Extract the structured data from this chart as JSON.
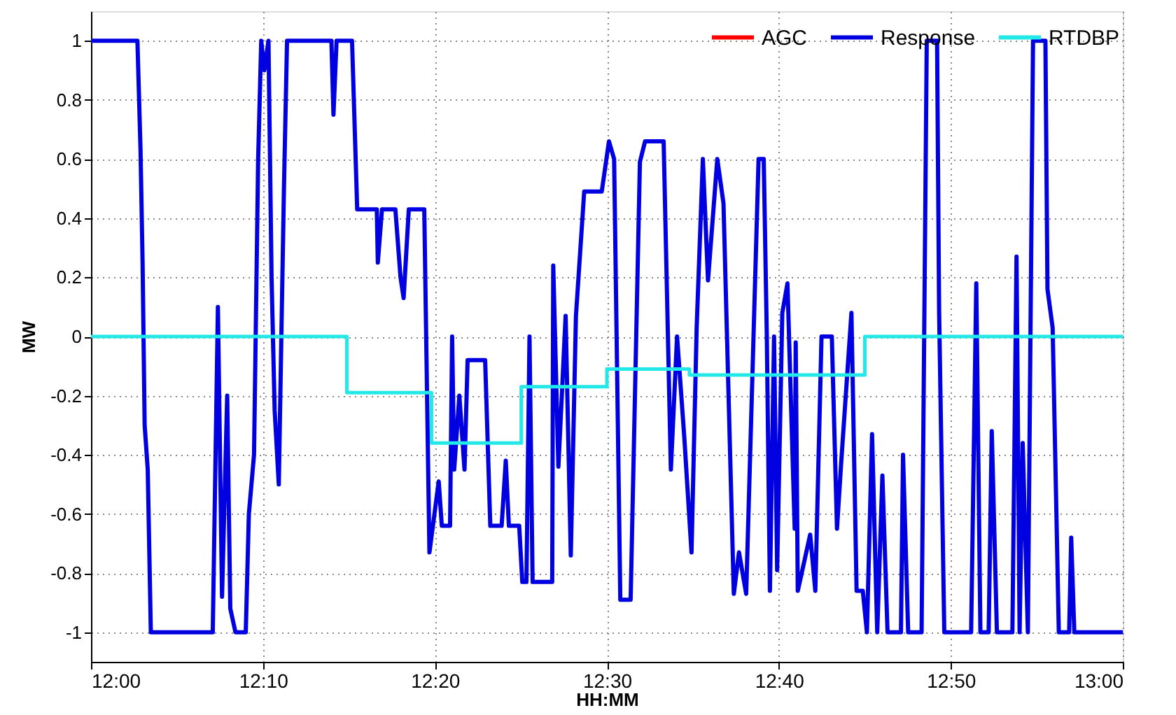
{
  "chart_data": {
    "type": "line",
    "xlabel": "HH:MM",
    "ylabel": "MW",
    "xlim": [
      12,
      13
    ],
    "xticks": [
      {
        "value": 12,
        "label": "12:00"
      },
      {
        "value": 12.1666667,
        "label": "12:10"
      },
      {
        "value": 12.3333333,
        "label": "12:20"
      },
      {
        "value": 12.5,
        "label": "12:30"
      },
      {
        "value": 12.6666667,
        "label": "12:40"
      },
      {
        "value": 12.8333333,
        "label": "12:50"
      },
      {
        "value": 13,
        "label": "13:00"
      }
    ],
    "ylim": [
      -1.1,
      1.1
    ],
    "yticks": [
      -1,
      -0.8,
      -0.6,
      -0.4,
      -0.2,
      0,
      0.2,
      0.4,
      0.6,
      0.8,
      1
    ],
    "grid": true,
    "legend": "top right",
    "line_style": "solid",
    "series": [
      {
        "name": "AGC",
        "color": "#ff0000"
      },
      {
        "name": "Response",
        "color": "#0000e0",
        "x": [
          12.0,
          12.045,
          12.048,
          12.05,
          12.052,
          12.055,
          12.058,
          12.118,
          12.123,
          12.127,
          12.132,
          12.135,
          12.14,
          12.15,
          12.153,
          12.158,
          12.162,
          12.165,
          12.168,
          12.172,
          12.175,
          12.178,
          12.182,
          12.187,
          12.19,
          12.233,
          12.235,
          12.238,
          12.253,
          12.258,
          12.277,
          12.278,
          12.282,
          12.295,
          12.3,
          12.303,
          12.308,
          12.323,
          12.328,
          12.337,
          12.34,
          12.348,
          12.35,
          12.352,
          12.357,
          12.362,
          12.365,
          12.382,
          12.387,
          12.398,
          12.402,
          12.405,
          12.415,
          12.418,
          12.422,
          12.425,
          12.428,
          12.447,
          12.448,
          12.453,
          12.46,
          12.465,
          12.47,
          12.478,
          12.495,
          12.502,
          12.507,
          12.513,
          12.523,
          12.532,
          12.537,
          12.555,
          12.562,
          12.568,
          12.575,
          12.582,
          12.587,
          12.593,
          12.598,
          12.607,
          12.613,
          12.623,
          12.628,
          12.635,
          12.647,
          12.652,
          12.655,
          12.658,
          12.662,
          12.665,
          12.67,
          12.675,
          12.682,
          12.683,
          12.685,
          12.697,
          12.702,
          12.708,
          12.718,
          12.723,
          12.727,
          12.737,
          12.742,
          12.748,
          12.752,
          12.757,
          12.762,
          12.767,
          12.772,
          12.785,
          12.787,
          12.792,
          12.805,
          12.81,
          12.82,
          12.822,
          12.827,
          12.853,
          12.858,
          12.862,
          12.87,
          12.873,
          12.878,
          12.893,
          12.897,
          12.9,
          12.903,
          12.908,
          12.913,
          12.925,
          12.927,
          12.932,
          12.938,
          12.948,
          12.95,
          12.953,
          13.0
        ],
        "values": [
          1,
          1,
          0.63,
          0.25,
          -0.3,
          -0.45,
          -1,
          -1,
          0.1,
          -0.88,
          -0.2,
          -0.92,
          -1,
          -1,
          -0.6,
          -0.4,
          0.6,
          1,
          0.9,
          1,
          0.2,
          -0.25,
          -0.5,
          0.5,
          1,
          1,
          0.75,
          1,
          1,
          0.43,
          0.43,
          0.25,
          0.43,
          0.43,
          0.2,
          0.13,
          0.43,
          0.43,
          -0.73,
          -0.49,
          -0.64,
          -0.64,
          0,
          -0.45,
          -0.2,
          -0.45,
          -0.08,
          -0.08,
          -0.64,
          -0.64,
          -0.42,
          -0.64,
          -0.64,
          -0.83,
          -0.83,
          0,
          -0.83,
          -0.83,
          0.24,
          -0.44,
          0.07,
          -0.74,
          0.07,
          0.49,
          0.49,
          0.66,
          0.6,
          -0.89,
          -0.89,
          0.59,
          0.66,
          0.66,
          -0.45,
          0,
          -0.34,
          -0.73,
          0.03,
          0.6,
          0.19,
          0.6,
          0.45,
          -0.87,
          -0.73,
          -0.87,
          0.6,
          0.6,
          0,
          -0.86,
          0,
          -0.79,
          0.08,
          0.18,
          -0.65,
          -0.02,
          -0.86,
          -0.67,
          -0.86,
          0,
          0,
          -0.65,
          -0.43,
          0.08,
          -0.86,
          -0.86,
          -1,
          -0.33,
          -1,
          -0.47,
          -1,
          -1,
          -0.4,
          -1,
          -1,
          1,
          1,
          0.08,
          -1,
          -1,
          0.18,
          -1,
          -1,
          -0.32,
          -1,
          -1,
          0.27,
          -1,
          -0.36,
          -1,
          1,
          1,
          0.16,
          0.03,
          -1,
          -1,
          -0.68,
          -1,
          -1
        ]
      },
      {
        "name": "RTDBP",
        "type": "step",
        "color": "#22e8e8",
        "x": [
          12,
          12.248,
          12.33,
          12.417,
          12.5,
          12.58,
          12.75,
          13
        ],
        "values": [
          0,
          -0.19,
          -0.36,
          -0.17,
          -0.11,
          -0.13,
          0,
          0
        ]
      }
    ]
  }
}
